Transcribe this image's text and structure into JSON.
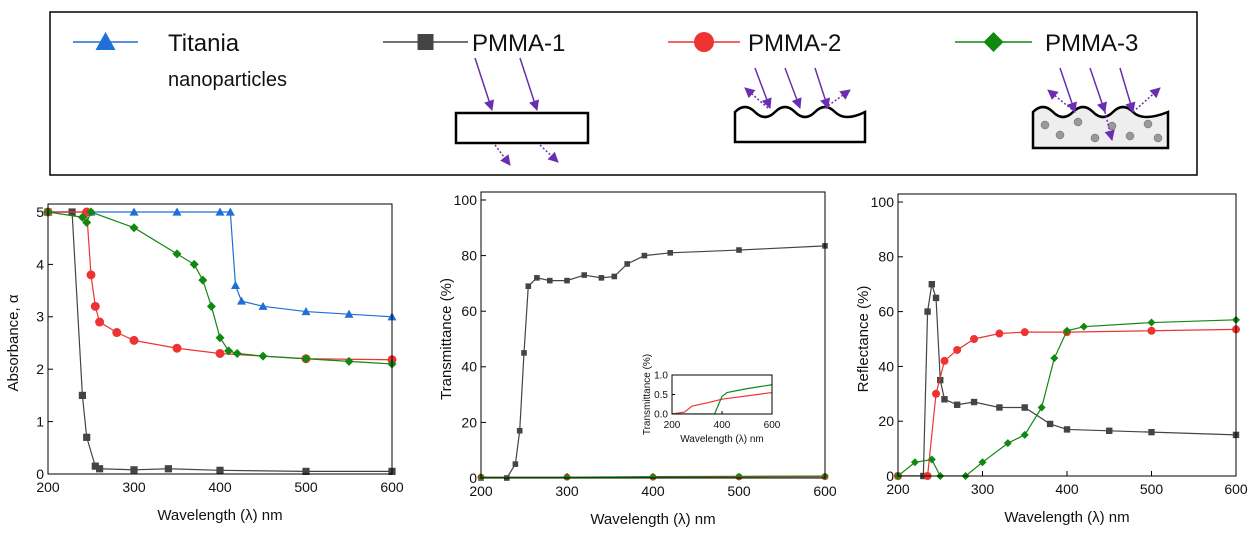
{
  "legend": {
    "entries": [
      {
        "label": "Titania",
        "sublabel": "nanoparticles",
        "color": "#1f6fd6",
        "marker": "triangle"
      },
      {
        "label": "PMMA-1",
        "color": "#444444",
        "marker": "square"
      },
      {
        "label": "PMMA-2",
        "color": "#ee3333",
        "marker": "circle"
      },
      {
        "label": "PMMA-3",
        "color": "#118811",
        "marker": "diamond"
      }
    ]
  },
  "chart_data": [
    {
      "type": "line",
      "ylabel": "Absorbance, α",
      "xlabel": "Wavelength (λ) nm",
      "xlim": [
        200,
        600
      ],
      "ylim": [
        0,
        5
      ],
      "xticks": [
        200,
        300,
        400,
        500,
        600
      ],
      "yticks": [
        0,
        1,
        2,
        3,
        4,
        5
      ],
      "series": [
        {
          "color": "#1f6fd6",
          "marker": "triangle",
          "x": [
            200,
            250,
            300,
            350,
            400,
            412,
            418,
            425,
            450,
            500,
            550,
            600
          ],
          "values": [
            5,
            5,
            5,
            5,
            5,
            5,
            3.6,
            3.3,
            3.2,
            3.1,
            3.05,
            3.0
          ]
        },
        {
          "color": "#444444",
          "marker": "square",
          "x": [
            200,
            228,
            240,
            245,
            255,
            260,
            300,
            340,
            400,
            500,
            600
          ],
          "values": [
            5,
            5,
            1.5,
            0.7,
            0.15,
            0.1,
            0.08,
            0.1,
            0.07,
            0.05,
            0.05
          ]
        },
        {
          "color": "#ee3333",
          "marker": "circle",
          "x": [
            200,
            245,
            250,
            255,
            260,
            280,
            300,
            350,
            400,
            500,
            600
          ],
          "values": [
            5,
            5,
            3.8,
            3.2,
            2.9,
            2.7,
            2.55,
            2.4,
            2.3,
            2.2,
            2.18
          ]
        },
        {
          "color": "#118811",
          "marker": "diamond",
          "x": [
            200,
            240,
            245,
            250,
            300,
            350,
            370,
            380,
            390,
            400,
            410,
            420,
            450,
            500,
            550,
            600
          ],
          "values": [
            5,
            4.9,
            4.8,
            5,
            4.7,
            4.2,
            4.0,
            3.7,
            3.2,
            2.6,
            2.35,
            2.3,
            2.25,
            2.2,
            2.15,
            2.1
          ]
        }
      ]
    },
    {
      "type": "line",
      "ylabel": "Transmittance (%)",
      "xlabel": "Wavelength (λ) nm",
      "xlim": [
        200,
        600
      ],
      "ylim": [
        0,
        100
      ],
      "xticks": [
        200,
        300,
        400,
        500,
        600
      ],
      "yticks": [
        0,
        20,
        40,
        60,
        80,
        100
      ],
      "series": [
        {
          "color": "#444444",
          "marker": "square",
          "x": [
            200,
            230,
            240,
            245,
            250,
            255,
            265,
            280,
            300,
            320,
            340,
            355,
            370,
            390,
            420,
            500,
            600
          ],
          "values": [
            0,
            0,
            5,
            17,
            45,
            69,
            72,
            71,
            71,
            73,
            72,
            72.5,
            77,
            80,
            81,
            82,
            83.5
          ]
        },
        {
          "color": "#ee3333",
          "marker": "circle",
          "x": [
            200,
            300,
            400,
            500,
            600
          ],
          "values": [
            0.3,
            0.3,
            0.3,
            0.4,
            0.5
          ]
        },
        {
          "color": "#118811",
          "marker": "diamond",
          "x": [
            200,
            300,
            400,
            500,
            600
          ],
          "values": [
            0.3,
            0.3,
            0.5,
            0.6,
            0.7
          ]
        }
      ]
    },
    {
      "type": "line",
      "ylabel": "Reflectance (%)",
      "xlabel": "Wavelength (λ) nm",
      "xlim": [
        200,
        600
      ],
      "ylim": [
        0,
        100
      ],
      "xticks": [
        200,
        300,
        400,
        500,
        600
      ],
      "yticks": [
        0,
        20,
        40,
        60,
        80,
        100
      ],
      "series": [
        {
          "color": "#444444",
          "marker": "square",
          "x": [
            200,
            230,
            235,
            240,
            245,
            250,
            255,
            270,
            290,
            320,
            350,
            380,
            400,
            450,
            500,
            600
          ],
          "values": [
            0,
            0,
            60,
            70,
            65,
            35,
            28,
            26,
            27,
            25,
            25,
            19,
            17,
            16.5,
            16,
            15
          ]
        },
        {
          "color": "#ee3333",
          "marker": "circle",
          "x": [
            200,
            235,
            245,
            255,
            270,
            290,
            320,
            350,
            400,
            500,
            600
          ],
          "values": [
            0,
            0,
            30,
            42,
            46,
            50,
            52,
            52.5,
            52.5,
            53,
            53.5
          ]
        },
        {
          "color": "#118811",
          "marker": "diamond",
          "x": [
            200,
            220,
            240,
            250,
            280,
            300,
            330,
            350,
            370,
            385,
            400,
            420,
            500,
            600
          ],
          "values": [
            0,
            5,
            6,
            0,
            0,
            5,
            12,
            15,
            25,
            43,
            53,
            54.5,
            56,
            57
          ]
        }
      ]
    },
    {
      "type": "line",
      "ylabel": "Transmittance (%)",
      "xlabel": "Wavelength (λ) nm",
      "xlim": [
        200,
        600
      ],
      "ylim": [
        0,
        1.0
      ],
      "xticks": [
        200,
        400,
        600
      ],
      "yticks": [
        {
          "value": 0,
          "label": "0.0"
        },
        0.5,
        {
          "value": 1,
          "label": "1.0"
        }
      ],
      "series": [
        {
          "color": "#ee3333",
          "x": [
            200,
            250,
            280,
            350,
            400,
            600
          ],
          "values": [
            0,
            0.05,
            0.2,
            0.3,
            0.38,
            0.55
          ]
        },
        {
          "color": "#118811",
          "x": [
            200,
            370,
            390,
            400,
            420,
            500,
            600
          ],
          "values": [
            0,
            0,
            0.3,
            0.45,
            0.55,
            0.65,
            0.75
          ]
        }
      ]
    }
  ]
}
